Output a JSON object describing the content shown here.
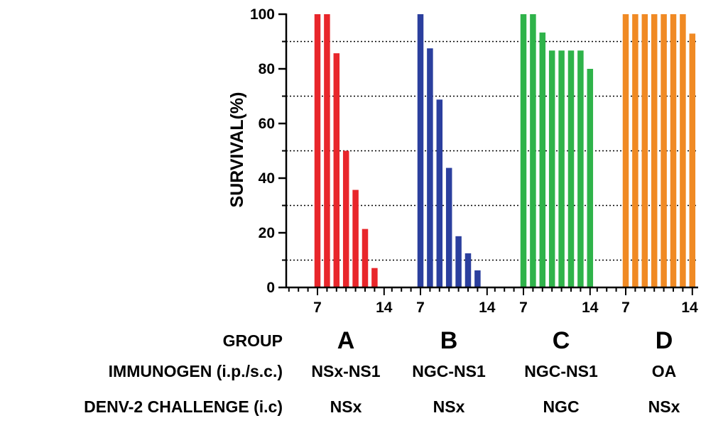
{
  "chart_data": {
    "type": "bar",
    "ylabel": "SURVIVAL(%)",
    "ylim": [
      0,
      100
    ],
    "yticks": [
      0,
      20,
      40,
      60,
      80,
      100
    ],
    "grid": "horizontal dotted lines",
    "days": [
      7,
      8,
      9,
      10,
      11,
      12,
      13,
      14
    ],
    "day_tick_labels": [
      "7",
      "14"
    ],
    "groups": [
      {
        "group": "A",
        "immunogen": "NSx-NS1",
        "challenge": "NSx",
        "color": "#e8262b",
        "values": [
          100,
          100,
          85.7,
          50,
          35.7,
          21.4,
          7.1,
          0
        ]
      },
      {
        "group": "B",
        "immunogen": "NGC-NS1",
        "challenge": "NSx",
        "color": "#2b3f9e",
        "values": [
          100,
          87.5,
          68.75,
          43.75,
          18.75,
          12.5,
          6.25,
          0
        ]
      },
      {
        "group": "C",
        "immunogen": "NGC-NS1",
        "challenge": "NGC",
        "color": "#2fb34a",
        "values": [
          100,
          100,
          93.3,
          86.7,
          86.7,
          86.7,
          86.7,
          80
        ]
      },
      {
        "group": "D",
        "immunogen": "OA",
        "challenge": "NSx",
        "color": "#f08a24",
        "values": [
          100,
          100,
          100,
          100,
          100,
          100,
          100,
          92.9
        ]
      }
    ]
  },
  "rows": {
    "group_label": "GROUP",
    "immunogen_label": "IMMUNOGEN (i.p./s.c.)",
    "challenge_label": "DENV-2 CHALLENGE (i.c)"
  }
}
